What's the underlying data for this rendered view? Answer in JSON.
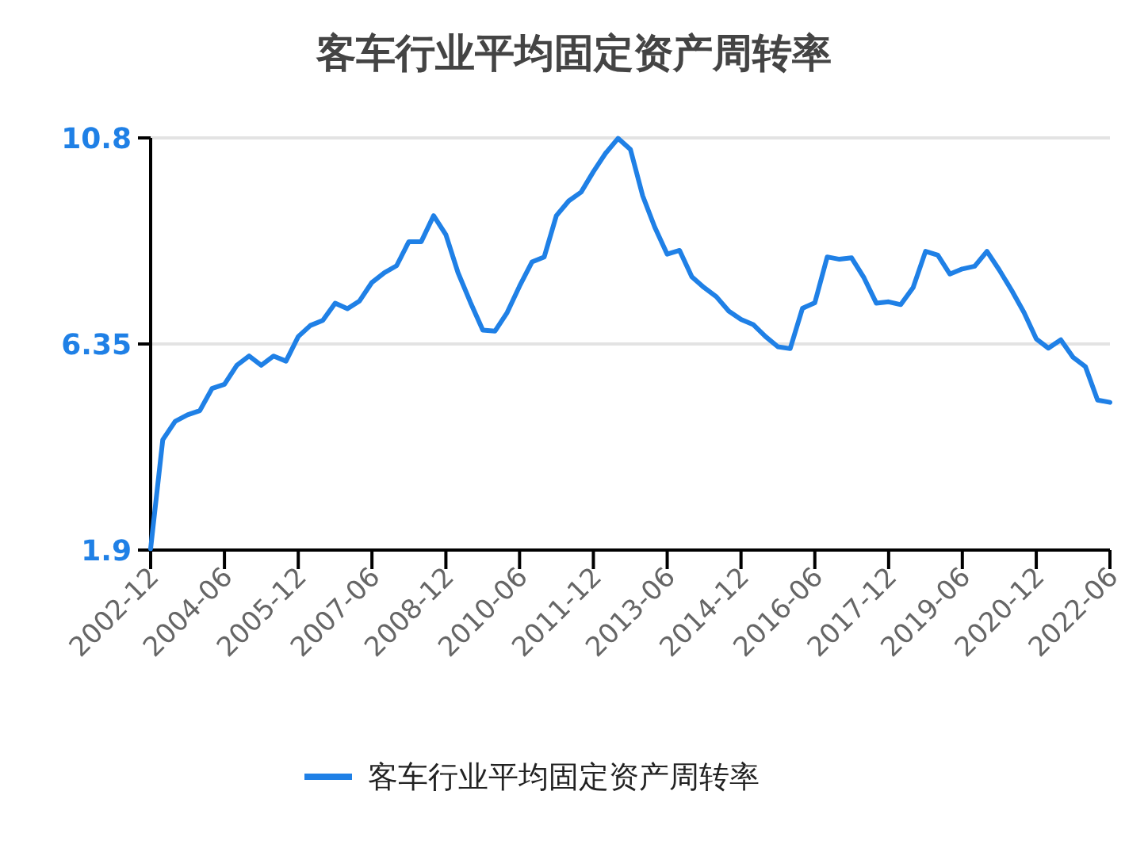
{
  "chart_data": {
    "type": "line",
    "title": "客车行业平均固定资产周转率",
    "x": [
      "2002-12",
      "2003-03",
      "2003-06",
      "2003-09",
      "2003-12",
      "2004-03",
      "2004-06",
      "2004-09",
      "2004-12",
      "2005-03",
      "2005-06",
      "2005-09",
      "2005-12",
      "2006-03",
      "2006-06",
      "2006-09",
      "2006-12",
      "2007-03",
      "2007-06",
      "2007-09",
      "2007-12",
      "2008-03",
      "2008-06",
      "2008-09",
      "2008-12",
      "2009-03",
      "2009-06",
      "2009-09",
      "2009-12",
      "2010-03",
      "2010-06",
      "2010-09",
      "2010-12",
      "2011-03",
      "2011-06",
      "2011-09",
      "2011-12",
      "2012-03",
      "2012-06",
      "2012-09",
      "2012-12",
      "2013-03",
      "2013-06",
      "2013-09",
      "2013-12",
      "2014-03",
      "2014-06",
      "2014-09",
      "2014-12",
      "2015-03",
      "2015-06",
      "2015-09",
      "2015-12",
      "2016-03",
      "2016-06",
      "2016-09",
      "2016-12",
      "2017-03",
      "2017-06",
      "2017-09",
      "2017-12",
      "2018-03",
      "2018-06",
      "2018-09",
      "2018-12",
      "2019-03",
      "2019-06",
      "2019-09",
      "2019-12",
      "2020-03",
      "2020-06",
      "2020-09",
      "2020-12",
      "2021-03",
      "2021-06",
      "2021-09",
      "2021-12",
      "2022-03",
      "2022-06"
    ],
    "series": [
      {
        "name": "客车行业平均固定资产周转率",
        "color": "#1f80e6",
        "values": [
          1.93,
          4.28,
          4.68,
          4.82,
          4.91,
          5.39,
          5.48,
          5.89,
          6.09,
          5.89,
          6.09,
          5.98,
          6.51,
          6.75,
          6.86,
          7.23,
          7.11,
          7.28,
          7.68,
          7.89,
          8.04,
          8.56,
          8.56,
          9.12,
          8.71,
          7.89,
          7.25,
          6.65,
          6.63,
          7.03,
          7.6,
          8.12,
          8.23,
          9.12,
          9.44,
          9.63,
          10.07,
          10.47,
          10.79,
          10.55,
          9.55,
          8.87,
          8.29,
          8.37,
          7.8,
          7.57,
          7.37,
          7.06,
          6.88,
          6.77,
          6.51,
          6.29,
          6.25,
          7.12,
          7.24,
          8.23,
          8.18,
          8.21,
          7.78,
          7.23,
          7.26,
          7.2,
          7.57,
          8.35,
          8.27,
          7.86,
          7.97,
          8.03,
          8.35,
          7.95,
          7.51,
          7.03,
          6.46,
          6.26,
          6.44,
          6.06,
          5.86,
          5.14,
          5.09
        ]
      }
    ],
    "xlim": [
      "2002-12",
      "2022-06"
    ],
    "xticks": [
      "2002-12",
      "2004-06",
      "2005-12",
      "2007-06",
      "2008-12",
      "2010-06",
      "2011-12",
      "2013-06",
      "2014-12",
      "2016-06",
      "2017-12",
      "2019-06",
      "2020-12",
      "2022-06"
    ],
    "ylim": [
      1.9,
      10.8
    ],
    "yticks": [
      1.9,
      6.35,
      10.8
    ],
    "grid": "y",
    "legend": "bottom",
    "marker": "none",
    "line_style": "solid"
  }
}
